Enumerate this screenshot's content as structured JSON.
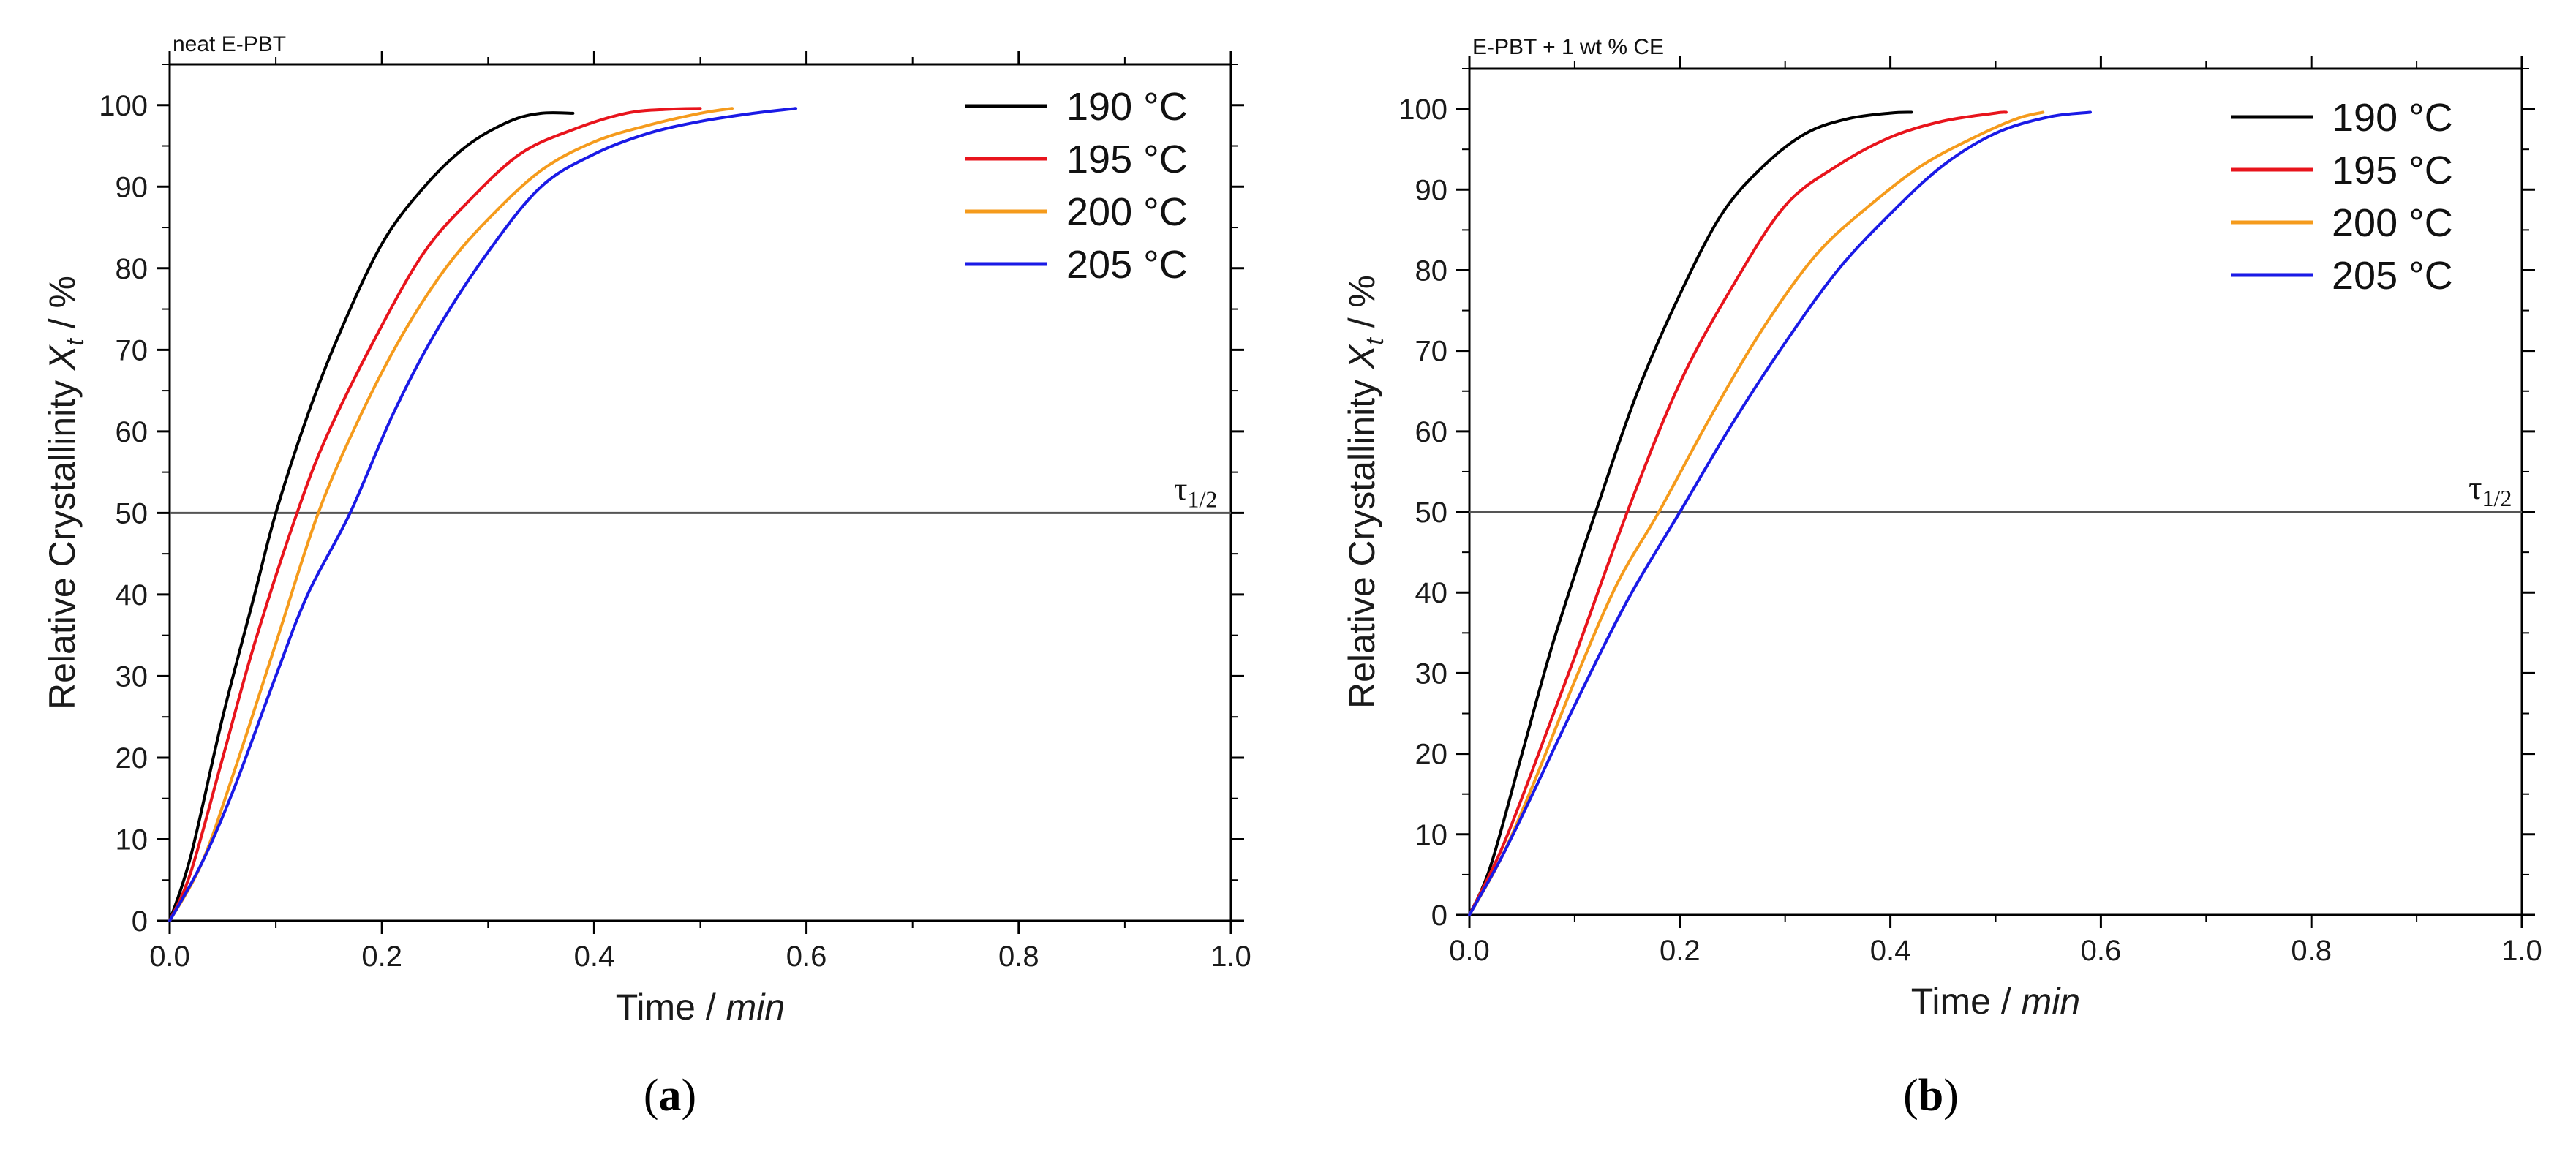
{
  "chart_data": [
    {
      "type": "line",
      "panel_title": "neat E-PBT",
      "caption_open": "(",
      "caption_letter": "a",
      "caption_close": ")",
      "xlabel": "Time / ",
      "xlabel_italic": "min",
      "ylabel": "Relative Crystallinity ",
      "ylabel_var": "X",
      "ylabel_sub": "t",
      "ylabel_unit": " / %",
      "xlim": [
        0,
        1.0
      ],
      "ylim": [
        0,
        105
      ],
      "x_ticks": [
        "0.0",
        "0.2",
        "0.4",
        "0.6",
        "0.8",
        "1.0"
      ],
      "y_ticks": [
        "0",
        "10",
        "20",
        "30",
        "40",
        "50",
        "60",
        "70",
        "80",
        "90",
        "100"
      ],
      "reference_line": {
        "y": 50,
        "label": "τ",
        "label_sub": "1/2"
      },
      "legend_position": "top-right",
      "series": [
        {
          "name": "190 °C",
          "color": "#000000",
          "x": [
            0,
            0.02,
            0.05,
            0.08,
            0.1,
            0.13,
            0.16,
            0.2,
            0.24,
            0.28,
            0.32,
            0.35,
            0.38
          ],
          "y": [
            0,
            8,
            25,
            40,
            50,
            62,
            72,
            83,
            90,
            95,
            98,
            99,
            99
          ]
        },
        {
          "name": "195 °C",
          "color": "#e8141c",
          "x": [
            0,
            0.02,
            0.05,
            0.08,
            0.12,
            0.15,
            0.2,
            0.24,
            0.28,
            0.33,
            0.38,
            0.43,
            0.47,
            0.5
          ],
          "y": [
            0,
            6,
            20,
            34,
            50,
            60,
            73,
            82,
            88,
            94,
            97,
            99,
            99.5,
            99.6
          ]
        },
        {
          "name": "200 °C",
          "color": "#f59b1c",
          "x": [
            0,
            0.03,
            0.06,
            0.1,
            0.14,
            0.18,
            0.22,
            0.26,
            0.3,
            0.35,
            0.4,
            0.45,
            0.5,
            0.53
          ],
          "y": [
            0,
            7,
            18,
            34,
            50,
            62,
            72,
            80,
            86,
            92,
            95.5,
            97.5,
            99,
            99.6
          ]
        },
        {
          "name": "205 °C",
          "color": "#1a1ae6",
          "x": [
            0,
            0.03,
            0.06,
            0.1,
            0.13,
            0.17,
            0.21,
            0.25,
            0.3,
            0.35,
            0.4,
            0.45,
            0.5,
            0.55,
            0.59
          ],
          "y": [
            0,
            7,
            16,
            30,
            40,
            50,
            62,
            72,
            82,
            90,
            94,
            96.5,
            98,
            99,
            99.6
          ]
        }
      ]
    },
    {
      "type": "line",
      "panel_title": "E-PBT + 1 wt % CE",
      "caption_open": "(",
      "caption_letter": "b",
      "caption_close": ")",
      "xlabel": "Time / ",
      "xlabel_italic": "min",
      "ylabel": "Relative Crystallinity ",
      "ylabel_var": "X",
      "ylabel_sub": "t",
      "ylabel_unit": " / %",
      "xlim": [
        0,
        1.0
      ],
      "ylim": [
        0,
        105
      ],
      "x_ticks": [
        "0.0",
        "0.2",
        "0.4",
        "0.6",
        "0.8",
        "1.0"
      ],
      "y_ticks": [
        "0",
        "10",
        "20",
        "30",
        "40",
        "50",
        "60",
        "70",
        "80",
        "90",
        "100"
      ],
      "reference_line": {
        "y": 50,
        "label": "τ",
        "label_sub": "1/2"
      },
      "legend_position": "top-right",
      "series": [
        {
          "name": "190 °C",
          "color": "#000000",
          "x": [
            0,
            0.02,
            0.05,
            0.08,
            0.12,
            0.16,
            0.2,
            0.24,
            0.28,
            0.32,
            0.36,
            0.4,
            0.42
          ],
          "y": [
            0,
            6,
            20,
            34,
            50,
            65,
            77,
            87,
            93,
            97,
            98.8,
            99.5,
            99.6
          ]
        },
        {
          "name": "195 °C",
          "color": "#e8141c",
          "x": [
            0,
            0.03,
            0.06,
            0.1,
            0.15,
            0.2,
            0.25,
            0.3,
            0.35,
            0.4,
            0.45,
            0.5,
            0.51
          ],
          "y": [
            0,
            8,
            18,
            32,
            50,
            66,
            78,
            88,
            93,
            96.5,
            98.5,
            99.5,
            99.6
          ]
        },
        {
          "name": "200 °C",
          "color": "#f59b1c",
          "x": [
            0,
            0.03,
            0.06,
            0.1,
            0.14,
            0.18,
            0.23,
            0.28,
            0.33,
            0.38,
            0.43,
            0.48,
            0.52,
            0.545
          ],
          "y": [
            0,
            7,
            16,
            29,
            41,
            50,
            62,
            73,
            82,
            88,
            93,
            96.5,
            98.8,
            99.6
          ]
        },
        {
          "name": "205 °C",
          "color": "#1a1ae6",
          "x": [
            0,
            0.03,
            0.06,
            0.1,
            0.15,
            0.2,
            0.25,
            0.3,
            0.35,
            0.4,
            0.45,
            0.5,
            0.55,
            0.59
          ],
          "y": [
            0,
            7,
            15,
            26,
            39,
            50,
            61,
            71,
            80,
            87,
            93,
            97,
            99,
            99.6
          ]
        }
      ]
    }
  ]
}
